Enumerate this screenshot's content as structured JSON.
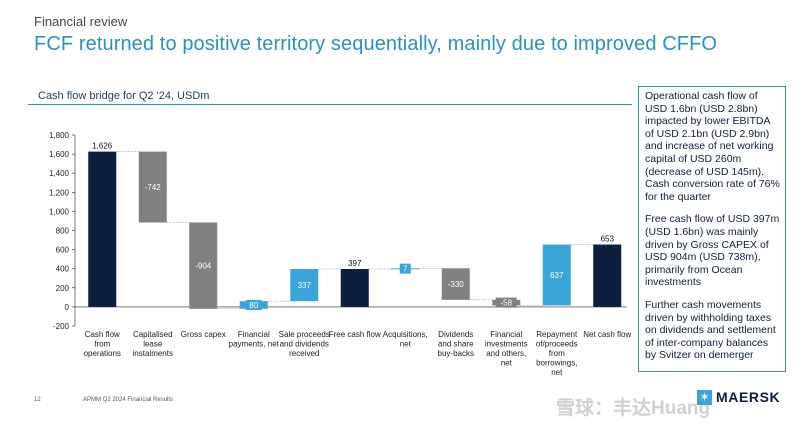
{
  "header": {
    "section_label": "Financial review",
    "headline": "FCF returned to positive territory sequentially, mainly due to improved CFFO"
  },
  "chart_data": {
    "type": "bar",
    "title": "Cash flow bridge for Q2 '24, USDm",
    "ylim": [
      -200,
      1800
    ],
    "yticks": [
      -200,
      0,
      200,
      400,
      600,
      800,
      1000,
      1200,
      1400,
      1600,
      1800
    ],
    "ytick_labels": [
      "-200",
      "0",
      "200",
      "400",
      "600",
      "800",
      "1,000",
      "1,200",
      "1,400",
      "1,600",
      "1,800"
    ],
    "grid": false,
    "bars": [
      {
        "label": [
          "Cash flow",
          "from",
          "operations"
        ],
        "start": 0,
        "end": 1626,
        "value_label": "1,626",
        "color": "#0c1f3f",
        "label_pos": "above"
      },
      {
        "label": [
          "Capitalised",
          "lease",
          "instalments"
        ],
        "start": 1626,
        "end": 884,
        "value_label": "-742",
        "color": "#808080",
        "label_pos": "inside"
      },
      {
        "label": [
          "Gross capex"
        ],
        "start": 884,
        "end": -20,
        "value_label": "-904",
        "color": "#808080",
        "label_pos": "inside"
      },
      {
        "label": [
          "Financial",
          "payments, net"
        ],
        "start": -20,
        "end": 60,
        "value_label": "80",
        "color": "#3aa5d8",
        "label_pos": "inside"
      },
      {
        "label": [
          "Sale proceeds",
          "and dividends",
          "received"
        ],
        "start": 60,
        "end": 397,
        "value_label": "337",
        "color": "#3aa5d8",
        "label_pos": "inside"
      },
      {
        "label": [
          "Free cash flow"
        ],
        "start": 0,
        "end": 397,
        "value_label": "397",
        "color": "#0c1f3f",
        "label_pos": "above"
      },
      {
        "label": [
          "Acquisitions,",
          "net"
        ],
        "start": 397,
        "end": 404,
        "value_label": "7",
        "color": "#3aa5d8",
        "label_pos": "inside"
      },
      {
        "label": [
          "Dividends",
          "and share",
          "buy-backs"
        ],
        "start": 404,
        "end": 74,
        "value_label": "-330",
        "color": "#808080",
        "label_pos": "inside"
      },
      {
        "label": [
          "Financial",
          "investments",
          "and others,",
          "net"
        ],
        "start": 74,
        "end": 16,
        "value_label": "-58",
        "color": "#808080",
        "label_pos": "inside"
      },
      {
        "label": [
          "Repayment",
          "of/proceeds",
          "from",
          "borrowings,",
          "net"
        ],
        "start": 16,
        "end": 653,
        "value_label": "637",
        "color": "#3aa5d8",
        "label_pos": "inside"
      },
      {
        "label": [
          "Net cash flow"
        ],
        "start": 0,
        "end": 653,
        "value_label": "653",
        "color": "#0c1f3f",
        "label_pos": "above"
      }
    ]
  },
  "commentary": [
    "Operational cash flow of USD 1.6bn (USD 2.8bn) impacted by lower EBITDA of USD 2.1bn (USD 2.9bn) and increase of net working capital of USD 260m (decrease of USD 145m). Cash conversion rate of 76% for the quarter",
    "Free cash flow of USD 397m (USD 1.6bn) was mainly driven by Gross CAPEX of USD 904m (USD 738m), primarily from Ocean investments",
    "Further cash movements driven by withholding taxes on dividends and settlement of inter-company balances by Svitzer on demerger"
  ],
  "footer": {
    "page_number": "12",
    "document": "APMM Q2 2024 Financial Results",
    "logo_text": "MAERSK",
    "watermark": "雪球：丰达Huang"
  }
}
